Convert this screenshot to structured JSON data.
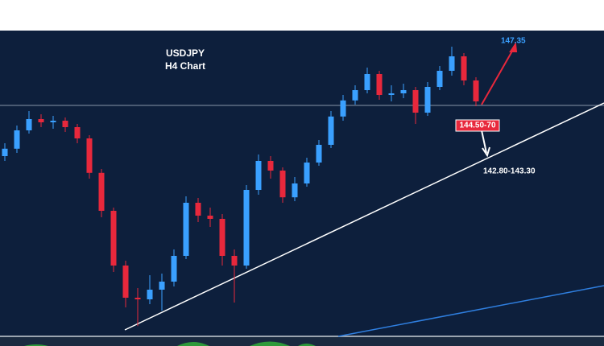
{
  "chart_data": {
    "type": "candlestick",
    "title": "USDJPY",
    "subtitle": "H4 Chart",
    "up_color": "#3aa0ff",
    "down_color": "#e8283c",
    "ylim": [
      137.4,
      146.9
    ],
    "open": [
      143.0,
      143.23,
      143.8,
      144.15,
      144.05,
      144.1,
      143.9,
      143.55,
      142.48,
      141.3,
      139.6,
      138.6,
      138.55,
      138.85,
      139.1,
      139.9,
      141.55,
      141.15,
      141.05,
      139.9,
      139.6,
      141.95,
      142.85,
      142.55,
      141.72,
      142.15,
      142.8,
      143.35,
      144.23,
      144.73,
      145.05,
      145.55,
      144.9,
      144.95,
      145.05,
      144.35,
      145.15,
      145.65,
      146.1,
      145.35
    ],
    "high": [
      143.4,
      143.95,
      144.4,
      144.3,
      144.25,
      144.2,
      144.0,
      143.65,
      142.6,
      141.4,
      139.75,
      138.9,
      139.3,
      139.35,
      140.1,
      141.75,
      141.7,
      141.4,
      141.2,
      140.1,
      142.1,
      143.05,
      143.0,
      142.65,
      142.35,
      142.95,
      143.5,
      144.4,
      144.9,
      145.2,
      145.75,
      145.65,
      145.2,
      145.25,
      145.15,
      145.3,
      145.8,
      146.4,
      146.2,
      145.45
    ],
    "low": [
      142.85,
      143.1,
      143.7,
      143.9,
      143.85,
      143.75,
      143.4,
      142.3,
      141.1,
      139.4,
      138.3,
      137.72,
      138.4,
      138.2,
      138.95,
      139.8,
      140.95,
      140.8,
      139.6,
      138.45,
      139.5,
      141.8,
      142.3,
      141.55,
      141.6,
      142.05,
      142.7,
      143.25,
      144.1,
      144.6,
      144.95,
      144.75,
      144.7,
      144.8,
      144.0,
      144.25,
      145.05,
      145.5,
      145.2,
      144.55
    ],
    "close": [
      143.23,
      143.8,
      144.15,
      144.05,
      144.1,
      143.9,
      143.55,
      142.48,
      141.3,
      139.6,
      138.6,
      138.55,
      138.85,
      139.1,
      139.9,
      141.55,
      141.15,
      141.05,
      139.9,
      139.6,
      141.95,
      142.85,
      142.55,
      141.72,
      142.15,
      142.8,
      143.35,
      144.23,
      144.73,
      145.05,
      145.55,
      144.9,
      144.95,
      145.05,
      144.35,
      145.15,
      145.65,
      146.1,
      145.35,
      144.7
    ],
    "annotations": [
      "147.35",
      "144.50-70",
      "142.80-143.30"
    ]
  }
}
